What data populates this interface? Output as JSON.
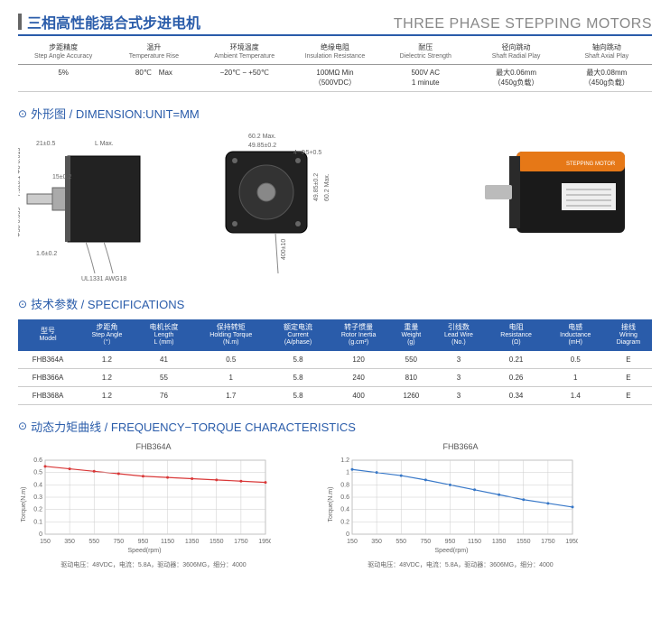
{
  "header": {
    "title_cn": "三相高性能混合式步进电机",
    "title_en": "THREE PHASE STEPPING MOTORS"
  },
  "top_params": {
    "columns": [
      {
        "cn": "步距精度",
        "en": "Step Angle Accuracy"
      },
      {
        "cn": "温升",
        "en": "Temperature Rise"
      },
      {
        "cn": "环境温度",
        "en": "Ambient Temperature"
      },
      {
        "cn": "绝缘电阻",
        "en": "Insulation Resistance"
      },
      {
        "cn": "耐压",
        "en": "Dielectric Strength"
      },
      {
        "cn": "径向跳动",
        "en": "Shaft Radial Play"
      },
      {
        "cn": "轴向跳动",
        "en": "Shaft Axial Play"
      }
    ],
    "values": [
      "5%",
      "80℃　Max",
      "−20℃ − +50℃",
      "100MΩ Min\n（500VDC）",
      "500V AC\n1 minute",
      "最大0.06mm\n（450g负载）",
      "最大0.08mm\n（450g负载）"
    ]
  },
  "sections": {
    "dimension": "外形图 / DIMENSION:UNIT=MM",
    "spec": "技术参数 / SPECIFICATIONS",
    "freq": "动态力矩曲线 / FREQUENCY−TORQUE CHARACTERISTICS"
  },
  "dim_labels": {
    "a": "21±0.5",
    "b": "L Max.",
    "c": "15±0.2",
    "d": "1.6±0.2",
    "e": "Φ8-0.013",
    "f": "7.5±0.1",
    "g": "Φ36-0.039",
    "h": "60.2 Max.",
    "i": "49.85±0.2",
    "j": "4−Φ5+0.5",
    "k": "49.85±0.2",
    "l": "60.2 Max.",
    "m": "400±10",
    "n": "UL1331 AWG18"
  },
  "spec_table": {
    "headers": [
      {
        "cn": "型号",
        "en": "Model"
      },
      {
        "cn": "步距角",
        "en": "Step Angle\n（°）"
      },
      {
        "cn": "电机长度",
        "en": "Length\nL (mm)"
      },
      {
        "cn": "保持转矩",
        "en": "Holding Torque\n(N.m)"
      },
      {
        "cn": "额定电流",
        "en": "Current\n(A/phase)"
      },
      {
        "cn": "转子惯量",
        "en": "Rotor Inertia\n(g.cm²)"
      },
      {
        "cn": "重量",
        "en": "Weight\n(g)"
      },
      {
        "cn": "引线数",
        "en": "Lead Wire\n(No.)"
      },
      {
        "cn": "电阻",
        "en": "Resistance\n(Ω)"
      },
      {
        "cn": "电感",
        "en": "Inductance\n(mH)"
      },
      {
        "cn": "接线",
        "en": "Wiring\nDiagram"
      }
    ],
    "rows": [
      [
        "FHB364A",
        "1.2",
        "41",
        "0.5",
        "5.8",
        "120",
        "550",
        "3",
        "0.21",
        "0.5",
        "E"
      ],
      [
        "FHB366A",
        "1.2",
        "55",
        "1",
        "5.8",
        "240",
        "810",
        "3",
        "0.26",
        "1",
        "E"
      ],
      [
        "FHB368A",
        "1.2",
        "76",
        "1.7",
        "5.8",
        "400",
        "1260",
        "3",
        "0.34",
        "1.4",
        "E"
      ]
    ]
  },
  "charts": [
    {
      "title": "FHB364A",
      "color": "#d93838",
      "xlabel": "Speed(rpm)",
      "ylabel": "Torque(N.m)",
      "ylim": [
        0,
        0.6
      ],
      "ytick_step": 0.1,
      "xlim": [
        150,
        1950
      ],
      "xtick_step": 200,
      "points": [
        [
          150,
          0.55
        ],
        [
          350,
          0.53
        ],
        [
          550,
          0.51
        ],
        [
          750,
          0.49
        ],
        [
          950,
          0.47
        ],
        [
          1150,
          0.46
        ],
        [
          1350,
          0.45
        ],
        [
          1550,
          0.44
        ],
        [
          1750,
          0.43
        ],
        [
          1950,
          0.42
        ]
      ],
      "note": "驱动电压：48VDC，电流：5.8A，驱动器：3606MG，细分：4000"
    },
    {
      "title": "FHB366A",
      "color": "#3878c8",
      "xlabel": "Speed(rpm)",
      "ylabel": "Torque(N.m)",
      "ylim": [
        0,
        1.2
      ],
      "ytick_step": 0.2,
      "xlim": [
        150,
        1950
      ],
      "xtick_step": 200,
      "points": [
        [
          150,
          1.05
        ],
        [
          350,
          1.0
        ],
        [
          550,
          0.95
        ],
        [
          750,
          0.88
        ],
        [
          950,
          0.8
        ],
        [
          1150,
          0.72
        ],
        [
          1350,
          0.64
        ],
        [
          1550,
          0.56
        ],
        [
          1750,
          0.5
        ],
        [
          1950,
          0.44
        ]
      ],
      "note": "驱动电压：48VDC，电流：5.8A，驱动器：3606MG，细分：4000"
    }
  ],
  "colors": {
    "brand": "#2a5caa",
    "grid": "#cccccc"
  }
}
